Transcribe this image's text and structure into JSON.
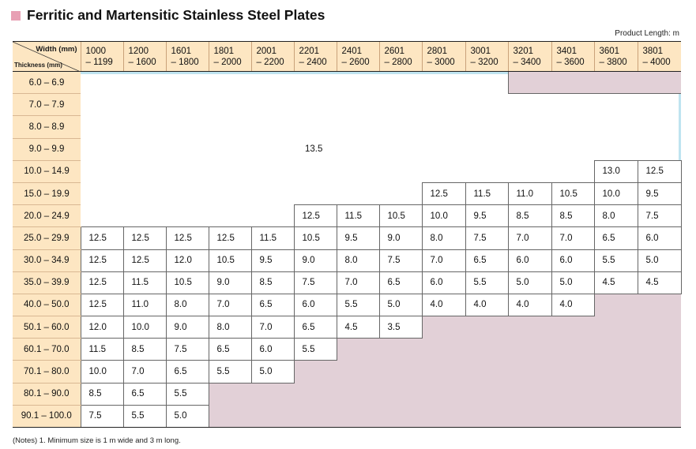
{
  "title": "Ferritic and Martensitic Stainless Steel Plates",
  "product_length": "Product Length: m",
  "corner": {
    "width_label": "Width (mm)",
    "thickness_label": "Thickness (mm)"
  },
  "width_columns": [
    {
      "lo": "1000",
      "hi": "– 1199"
    },
    {
      "lo": "1200",
      "hi": "– 1600"
    },
    {
      "lo": "1601",
      "hi": "– 1800"
    },
    {
      "lo": "1801",
      "hi": "– 2000"
    },
    {
      "lo": "2001",
      "hi": "– 2200"
    },
    {
      "lo": "2201",
      "hi": "– 2400"
    },
    {
      "lo": "2401",
      "hi": "– 2600"
    },
    {
      "lo": "2601",
      "hi": "– 2800"
    },
    {
      "lo": "2801",
      "hi": "– 3000"
    },
    {
      "lo": "3001",
      "hi": "– 3200"
    },
    {
      "lo": "3201",
      "hi": "– 3400"
    },
    {
      "lo": "3401",
      "hi": "– 3600"
    },
    {
      "lo": "3601",
      "hi": "– 3800"
    },
    {
      "lo": "3801",
      "hi": "– 4000"
    }
  ],
  "thickness_rows": [
    "6.0 – 6.9",
    "7.0 – 7.9",
    "8.0 – 8.9",
    "9.0 – 9.9",
    "10.0 – 14.9",
    "15.0 – 19.9",
    "20.0 – 24.9",
    "25.0 – 29.9",
    "30.0 – 34.9",
    "35.0 – 39.9",
    "40.0 – 50.0",
    "50.1 – 60.0",
    "60.1 – 70.0",
    "70.1 – 80.0",
    "80.1 – 90.0",
    "90.1 – 100.0"
  ],
  "big_region_value": "13.5",
  "cells": [
    [
      null,
      null,
      null,
      null,
      null,
      null,
      null,
      null,
      null,
      null,
      "x",
      "x",
      "x",
      "x"
    ],
    [
      null,
      null,
      null,
      null,
      null,
      null,
      null,
      null,
      null,
      null,
      null,
      null,
      null,
      null
    ],
    [
      null,
      null,
      null,
      null,
      null,
      null,
      null,
      null,
      null,
      null,
      null,
      null,
      null,
      null
    ],
    [
      null,
      null,
      null,
      null,
      null,
      null,
      null,
      null,
      null,
      null,
      null,
      null,
      null,
      null
    ],
    [
      null,
      null,
      null,
      null,
      null,
      null,
      null,
      null,
      null,
      null,
      null,
      null,
      "13.0",
      "12.5"
    ],
    [
      null,
      null,
      null,
      null,
      null,
      null,
      null,
      null,
      "12.5",
      "11.5",
      "11.0",
      "10.5",
      "10.0",
      "9.5"
    ],
    [
      null,
      null,
      null,
      null,
      null,
      "12.5",
      "11.5",
      "10.5",
      "10.0",
      "9.5",
      "8.5",
      "8.5",
      "8.0",
      "7.5"
    ],
    [
      "12.5",
      "12.5",
      "12.5",
      "12.5",
      "11.5",
      "10.5",
      "9.5",
      "9.0",
      "8.0",
      "7.5",
      "7.0",
      "7.0",
      "6.5",
      "6.0"
    ],
    [
      "12.5",
      "12.5",
      "12.0",
      "10.5",
      "9.5",
      "9.0",
      "8.0",
      "7.5",
      "7.0",
      "6.5",
      "6.0",
      "6.0",
      "5.5",
      "5.0"
    ],
    [
      "12.5",
      "11.5",
      "10.5",
      "9.0",
      "8.5",
      "7.5",
      "7.0",
      "6.5",
      "6.0",
      "5.5",
      "5.0",
      "5.0",
      "4.5",
      "4.5"
    ],
    [
      "12.5",
      "11.0",
      "8.0",
      "7.0",
      "6.5",
      "6.0",
      "5.5",
      "5.0",
      "4.0",
      "4.0",
      "4.0",
      "4.0",
      "x",
      "x"
    ],
    [
      "12.0",
      "10.0",
      "9.0",
      "8.0",
      "7.0",
      "6.5",
      "4.5",
      "3.5",
      "x",
      "x",
      "x",
      "x",
      "x",
      "x"
    ],
    [
      "11.5",
      "8.5",
      "7.5",
      "6.5",
      "6.0",
      "5.5",
      "x",
      "x",
      "x",
      "x",
      "x",
      "x",
      "x",
      "x"
    ],
    [
      "10.0",
      "7.0",
      "6.5",
      "5.5",
      "5.0",
      "x",
      "x",
      "x",
      "x",
      "x",
      "x",
      "x",
      "x",
      "x"
    ],
    [
      "8.5",
      "6.5",
      "5.5",
      "x",
      "x",
      "x",
      "x",
      "x",
      "x",
      "x",
      "x",
      "x",
      "x",
      "x"
    ],
    [
      "7.5",
      "5.5",
      "5.0",
      "x",
      "x",
      "x",
      "x",
      "x",
      "x",
      "x",
      "x",
      "x",
      "x",
      "x"
    ]
  ],
  "notes": "(Notes)   1. Minimum size is 1 m wide and 3 m long."
}
